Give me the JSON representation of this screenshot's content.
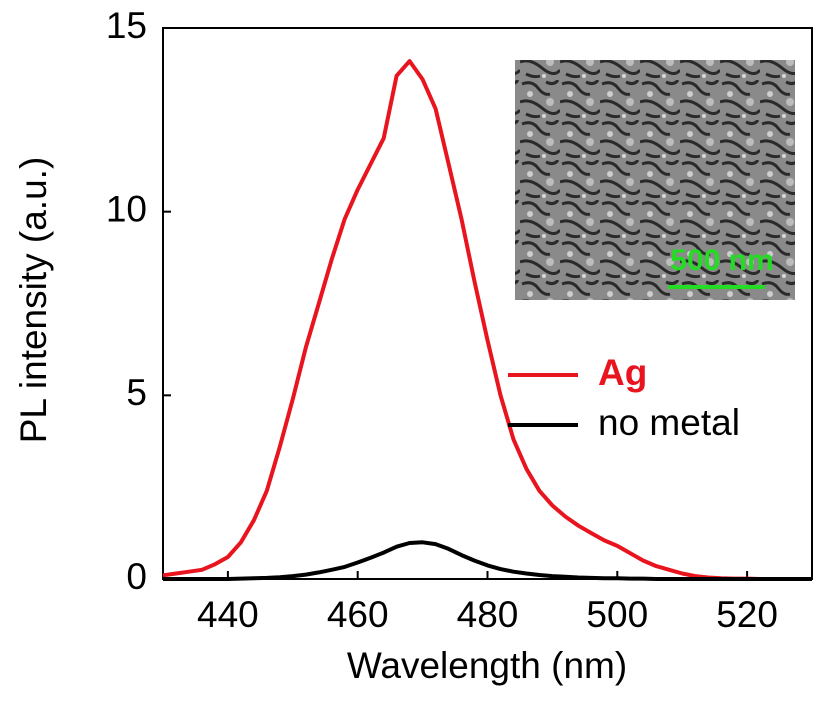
{
  "chart_data": {
    "type": "line",
    "x_label": "Wavelength (nm)",
    "y_label": "PL intensity (a.u.)",
    "inset_label": "500 nm",
    "x": [
      430,
      432,
      434,
      436,
      438,
      440,
      442,
      444,
      446,
      448,
      450,
      452,
      454,
      456,
      458,
      460,
      462,
      464,
      466,
      468,
      470,
      472,
      474,
      476,
      478,
      480,
      482,
      484,
      486,
      488,
      490,
      492,
      494,
      496,
      498,
      500,
      502,
      504,
      506,
      508,
      510,
      512,
      514,
      516,
      518,
      520,
      522,
      524,
      526,
      528,
      530
    ],
    "series": [
      {
        "name": "Ag",
        "color": "#e8141e",
        "values": [
          0.1,
          0.15,
          0.2,
          0.25,
          0.4,
          0.6,
          1.0,
          1.6,
          2.4,
          3.6,
          4.9,
          6.3,
          7.5,
          8.7,
          9.8,
          10.6,
          11.3,
          12.0,
          13.7,
          14.1,
          13.6,
          12.8,
          11.3,
          9.8,
          8.1,
          6.5,
          5.0,
          3.8,
          3.0,
          2.4,
          2.0,
          1.7,
          1.45,
          1.25,
          1.05,
          0.9,
          0.7,
          0.5,
          0.35,
          0.25,
          0.15,
          0.08,
          0.04,
          0.02,
          0.01,
          0.01,
          0,
          0,
          0,
          0,
          0
        ]
      },
      {
        "name": "no metal",
        "color": "#000000",
        "values": [
          0,
          0,
          0,
          0,
          0,
          0,
          0.01,
          0.02,
          0.03,
          0.05,
          0.08,
          0.12,
          0.18,
          0.25,
          0.33,
          0.45,
          0.58,
          0.72,
          0.88,
          0.98,
          1.0,
          0.95,
          0.82,
          0.65,
          0.5,
          0.37,
          0.27,
          0.2,
          0.15,
          0.11,
          0.08,
          0.06,
          0.04,
          0.03,
          0.02,
          0.02,
          0.01,
          0.01,
          0,
          0,
          0,
          0,
          0,
          0,
          0,
          0,
          0,
          0,
          0,
          0,
          0
        ]
      }
    ],
    "xlim": [
      430,
      530
    ],
    "xticks": [
      440,
      460,
      480,
      500,
      520
    ],
    "ylim": [
      0,
      15
    ],
    "yticks": [
      0,
      5,
      10,
      15
    ],
    "grid": false,
    "legend": "right"
  }
}
